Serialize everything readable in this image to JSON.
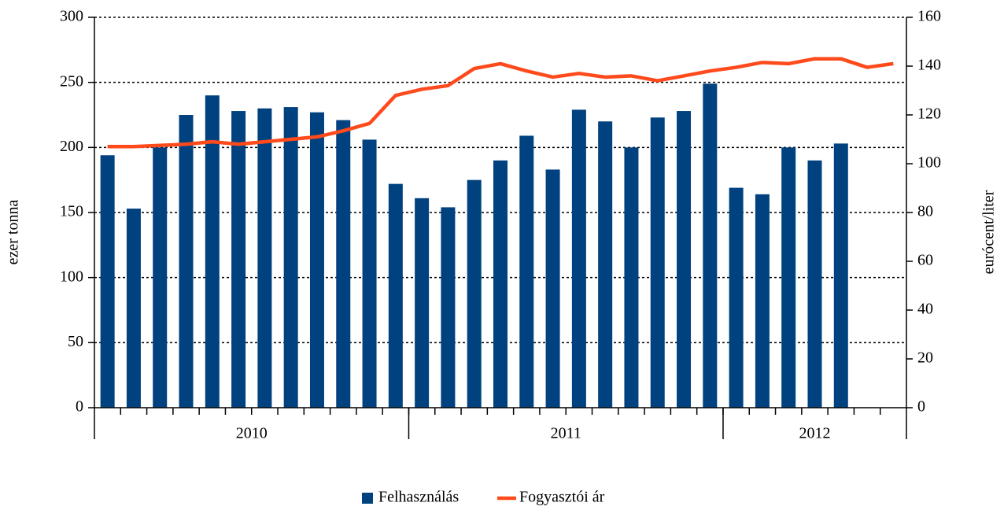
{
  "chart_data": {
    "type": "bar-line",
    "categories": [
      null,
      null,
      null,
      null,
      null,
      null,
      null,
      null,
      null,
      null,
      null,
      null,
      null,
      null,
      null,
      null,
      null,
      null,
      null,
      null,
      null,
      null,
      null,
      null,
      null,
      null,
      null,
      null,
      null,
      null,
      null
    ],
    "groups": [
      {
        "label": "2010",
        "count": 12
      },
      {
        "label": "2011",
        "count": 12
      },
      {
        "label": "2012",
        "count": 7
      }
    ],
    "ylabel": "ezer tonna",
    "y2label": "eurócent/liter",
    "ylim": [
      0,
      300
    ],
    "yticks": [
      0,
      50,
      100,
      150,
      200,
      250,
      300
    ],
    "y2lim": [
      0,
      160
    ],
    "y2ticks": [
      0,
      20,
      40,
      60,
      80,
      100,
      120,
      140,
      160
    ],
    "grid": true,
    "legend": "bottom",
    "series": [
      {
        "name": "Felhasználás",
        "type": "bar",
        "color": "#00427f",
        "values": [
          194,
          153,
          200,
          225,
          240,
          228,
          230,
          231,
          227,
          221,
          206,
          172,
          161,
          154,
          175,
          190,
          209,
          183,
          229,
          220,
          200,
          223,
          228,
          249,
          169,
          164,
          200,
          190,
          203,
          null,
          null
        ]
      },
      {
        "name": "Fogyasztói ár",
        "type": "line",
        "axis": "y2",
        "color": "#ff4a1c",
        "values": [
          107,
          107,
          107.5,
          108,
          109,
          108,
          109,
          110,
          111,
          113.5,
          116.5,
          128,
          130.5,
          132,
          139,
          141,
          138,
          135.5,
          137,
          135.5,
          136,
          134,
          136,
          138,
          139.5,
          141.5,
          141,
          143,
          143,
          139.5,
          141
        ]
      }
    ]
  }
}
